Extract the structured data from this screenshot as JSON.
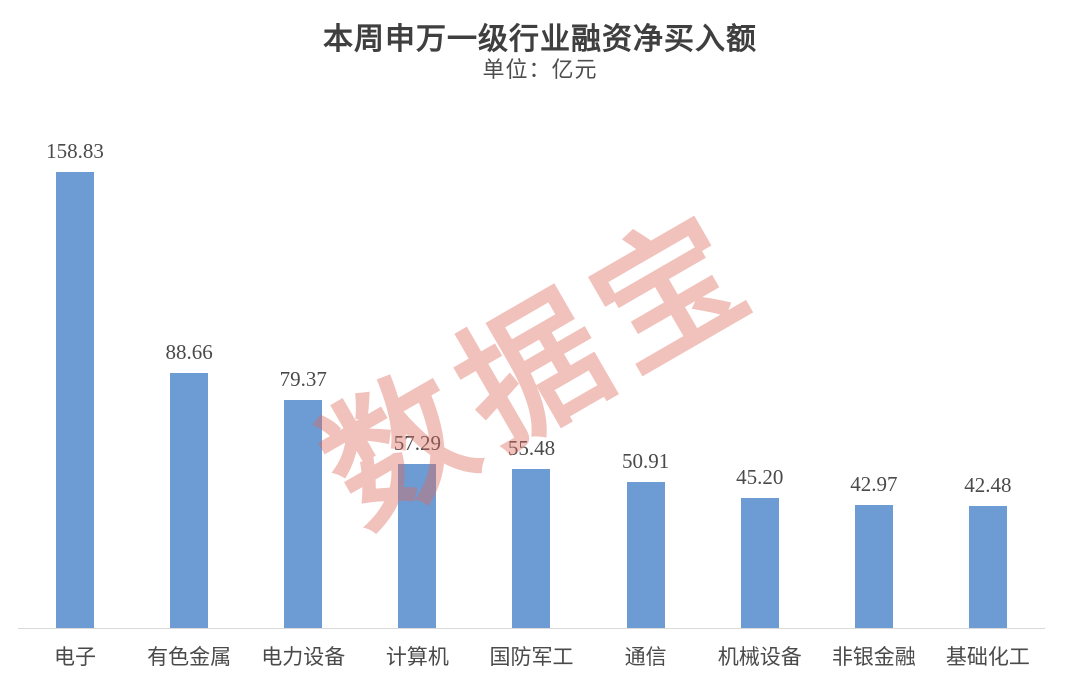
{
  "header": {
    "title": "本周申万一级行业融资净买入额",
    "subtitle": "单位：亿元"
  },
  "watermark": {
    "text": "数据宝"
  },
  "colors": {
    "bar": "#6d9bd3",
    "axis_line": "#d9d9d9",
    "value_text": "#4a4a4a",
    "title_text": "#3f3f3f",
    "watermark": "rgba(222, 107, 96, 0.42)"
  },
  "chart_data": {
    "type": "bar",
    "title": "本周申万一级行业融资净买入额",
    "subtitle": "单位：亿元",
    "unit": "亿元",
    "categories": [
      "电子",
      "有色金属",
      "电力设备",
      "计算机",
      "国防军工",
      "通信",
      "机械设备",
      "非银金融",
      "基础化工"
    ],
    "values": [
      158.83,
      88.66,
      79.37,
      57.29,
      55.48,
      50.91,
      45.2,
      42.97,
      42.48
    ],
    "value_labels": [
      "158.83",
      "88.66",
      "79.37",
      "57.29",
      "55.48",
      "50.91",
      "45.20",
      "42.97",
      "42.48"
    ],
    "xlabel": "",
    "ylabel": "",
    "ylim": [
      0,
      158.83
    ],
    "grid": false,
    "legend": "none",
    "bar_color": "#6d9bd3",
    "watermark_text": "数据宝"
  }
}
